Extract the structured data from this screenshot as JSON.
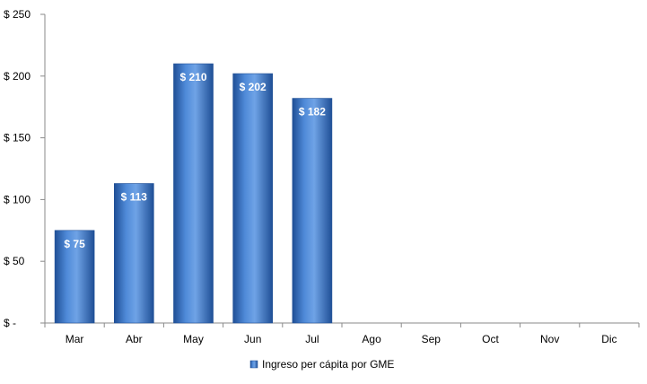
{
  "chart_data": {
    "type": "bar",
    "categories": [
      "Mar",
      "Abr",
      "May",
      "Jun",
      "Jul",
      "Ago",
      "Sep",
      "Oct",
      "Nov",
      "Dic"
    ],
    "series": [
      {
        "name": "Ingreso per cápita por GME",
        "values": [
          75,
          113,
          210,
          202,
          182,
          null,
          null,
          null,
          null,
          null
        ],
        "data_labels": [
          "$ 75",
          "$ 113",
          "$ 210",
          "$ 202",
          "$ 182",
          "",
          "",
          "",
          "",
          ""
        ]
      }
    ],
    "y_ticks": [
      0,
      50,
      100,
      150,
      200,
      250
    ],
    "y_tick_labels": [
      "$ -",
      "$ 50",
      "$ 100",
      "$ 150",
      "$ 200",
      "$ 250"
    ],
    "ylim": [
      0,
      250
    ],
    "title": "",
    "xlabel": "",
    "ylabel": "",
    "grid": false,
    "legend": {
      "position": "bottom",
      "entries": [
        "Ingreso per cápita por GME"
      ]
    },
    "colors": {
      "bar": "#2f6fc4",
      "bar_light": "#6fa3e6",
      "bar_dark": "#1f4f96",
      "axis": "#8a8a8a"
    }
  }
}
